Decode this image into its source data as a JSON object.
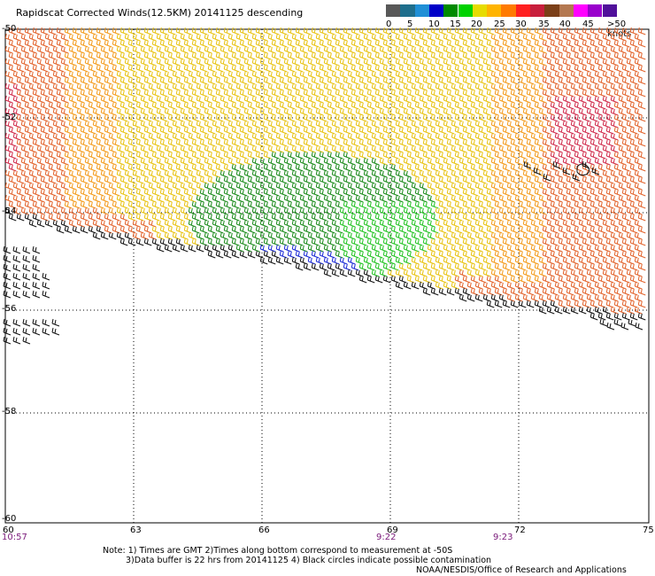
{
  "title": "Rapidscat Corrected Winds(12.5KM) 20141125 descending",
  "legend": {
    "ticks": [
      "0",
      "5",
      "10",
      "15",
      "20",
      "25",
      "30",
      "35",
      "40",
      "45",
      ">50 knots"
    ],
    "colors": [
      "#585858",
      "#1e6e8c",
      "#1f8fd6",
      "#0000c8",
      "#008a00",
      "#00d200",
      "#e6dc00",
      "#ffb400",
      "#ff7a00",
      "#ff2020",
      "#c81e3c",
      "#7b3f18",
      "#b47850",
      "#ff00ff",
      "#9900cc",
      "#50109a"
    ]
  },
  "map": {
    "lat_labels": [
      "-50",
      "-52",
      "-54",
      "-56",
      "-58",
      "-60"
    ],
    "lon_labels": [
      "60",
      "63",
      "66",
      "69",
      "72",
      "75"
    ],
    "time_labels": [
      "10:57",
      "9:22",
      "9:23"
    ]
  },
  "notes": {
    "line1": "Note: 1) Times are GMT 2)Times along bottom correspond to measurement at -50S",
    "line2": "3)Data buffer is 22 hrs from 20141125 4) Black circles indicate possible contamination",
    "line3": "NOAA/NESDIS/Office of Research and Applications"
  }
}
